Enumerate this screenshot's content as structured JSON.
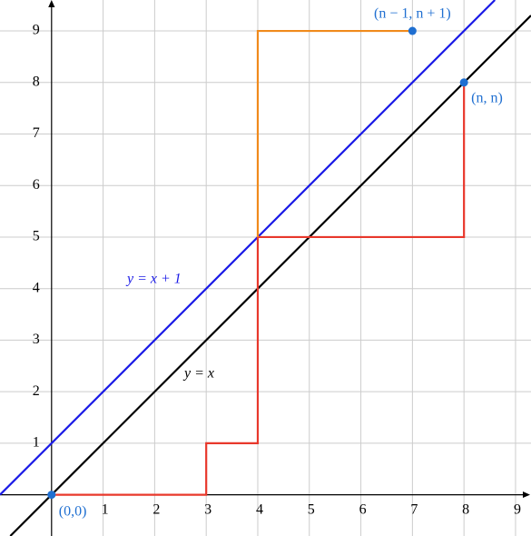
{
  "chart_data": {
    "type": "line",
    "xlim": [
      -1,
      9.3
    ],
    "ylim": [
      -0.8,
      9.6
    ],
    "xticks": [
      1,
      2,
      3,
      4,
      5,
      6,
      7,
      8,
      9
    ],
    "yticks": [
      1,
      2,
      3,
      4,
      5,
      6,
      7,
      8,
      9
    ],
    "grid": true,
    "series": [
      {
        "name": "y = x",
        "color": "#000000",
        "x": [
          -0.8,
          9.3
        ],
        "values": [
          -0.8,
          9.3
        ]
      },
      {
        "name": "y = x + 1",
        "color": "#1a1ae6",
        "x": [
          -1,
          8.6
        ],
        "values": [
          0,
          9.6
        ]
      },
      {
        "color": "#e8382c",
        "x": [
          0,
          3,
          3,
          4,
          4,
          8,
          8
        ],
        "values": [
          0,
          0,
          1,
          1,
          5,
          5,
          8
        ]
      },
      {
        "color": "#f08a1c",
        "x": [
          4,
          4,
          7
        ],
        "values": [
          5,
          9,
          9
        ]
      }
    ],
    "points": {
      "color": "#1f6fd1",
      "x": [
        0,
        8,
        7
      ],
      "values": [
        0,
        8,
        9
      ],
      "labels": [
        "(0,0)",
        "(n, n)",
        "(n − 1, n + 1)"
      ]
    }
  }
}
